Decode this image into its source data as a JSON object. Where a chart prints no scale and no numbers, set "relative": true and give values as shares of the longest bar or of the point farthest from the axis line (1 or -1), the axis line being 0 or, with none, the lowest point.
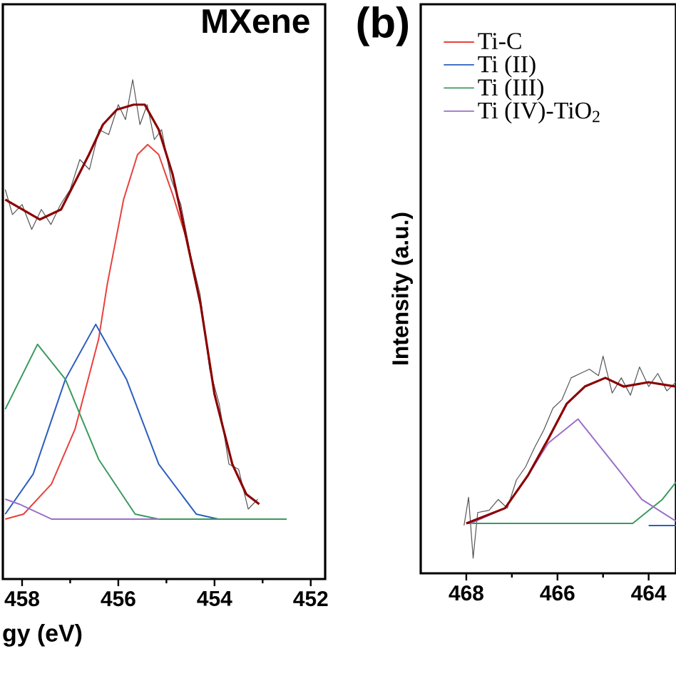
{
  "chart_data": [
    {
      "type": "line",
      "title": "MXene",
      "xlabel": "gy (eV)",
      "relative": true,
      "xlim": [
        458.4,
        451.7
      ],
      "xticks": [
        458,
        456,
        454,
        452
      ],
      "legend": false,
      "series": [
        {
          "color": "#555555",
          "x": [
            458.35,
            458.2,
            458.0,
            457.8,
            457.6,
            457.4,
            457.2,
            457.0,
            456.8,
            456.6,
            456.4,
            456.2,
            456.0,
            455.85,
            455.7,
            455.55,
            455.4,
            455.25,
            455.1,
            454.9,
            454.7,
            454.5,
            454.3,
            454.1,
            453.9,
            453.7,
            453.5,
            453.3,
            453.1
          ],
          "values": [
            0.78,
            0.73,
            0.75,
            0.7,
            0.74,
            0.71,
            0.75,
            0.78,
            0.84,
            0.82,
            0.9,
            0.89,
            0.95,
            0.92,
            1.0,
            0.91,
            0.95,
            0.88,
            0.9,
            0.8,
            0.75,
            0.65,
            0.57,
            0.42,
            0.35,
            0.23,
            0.22,
            0.14,
            0.16
          ]
        },
        {
          "color": "#e8413c",
          "x": [
            458.35,
            457.97,
            457.39,
            456.9,
            456.41,
            456.23,
            455.89,
            455.6,
            455.39,
            455.16,
            454.87,
            454.58
          ],
          "values": [
            0.12,
            0.13,
            0.19,
            0.3,
            0.48,
            0.59,
            0.76,
            0.85,
            0.87,
            0.85,
            0.77,
            0.68
          ]
        },
        {
          "color": "#2c5fbf",
          "x": [
            458.35,
            457.77,
            457.1,
            456.47,
            455.83,
            455.16,
            454.38,
            453.92
          ],
          "values": [
            0.13,
            0.21,
            0.4,
            0.51,
            0.4,
            0.23,
            0.13,
            0.12
          ]
        },
        {
          "color": "#3a9a5e",
          "x": [
            458.35,
            457.68,
            457.1,
            456.41,
            455.65,
            455.16,
            452.5
          ],
          "values": [
            0.34,
            0.47,
            0.4,
            0.24,
            0.13,
            0.12,
            0.12
          ]
        },
        {
          "color": "#9b6fc8",
          "x": [
            458.35,
            458.06,
            457.39,
            456.41,
            455.16
          ],
          "values": [
            0.16,
            0.15,
            0.12,
            0.12,
            0.12
          ]
        },
        {
          "color": "#8b0000",
          "x": [
            458.35,
            457.63,
            457.19,
            456.61,
            456.32,
            456.03,
            455.68,
            455.45,
            455.16,
            454.87,
            454.58,
            454.29,
            454.0,
            453.63,
            453.34,
            453.07
          ],
          "values": [
            0.76,
            0.72,
            0.74,
            0.85,
            0.91,
            0.94,
            0.95,
            0.95,
            0.9,
            0.81,
            0.68,
            0.55,
            0.37,
            0.23,
            0.17,
            0.15
          ]
        }
      ]
    },
    {
      "type": "line",
      "title": "(b)",
      "ylabel": "Intensity (a.u.)",
      "relative": true,
      "xlim": [
        469.0,
        463.4
      ],
      "xticks": [
        468,
        466,
        464
      ],
      "legend": "top left",
      "series": [
        {
          "color": "#555555",
          "x": [
            468.05,
            467.95,
            467.85,
            467.75,
            467.5,
            467.3,
            467.1,
            466.9,
            466.7,
            466.5,
            466.3,
            466.1,
            465.9,
            465.7,
            465.5,
            465.3,
            465.1,
            465.0,
            464.8,
            464.6,
            464.4,
            464.2,
            464.0,
            463.8,
            463.6,
            463.4
          ],
          "values": [
            0.22,
            0.35,
            0.07,
            0.28,
            0.29,
            0.34,
            0.3,
            0.43,
            0.49,
            0.58,
            0.66,
            0.76,
            0.8,
            0.9,
            0.92,
            0.94,
            0.91,
            1.0,
            0.83,
            0.9,
            0.82,
            0.95,
            0.86,
            0.92,
            0.84,
            0.88
          ]
        },
        {
          "name": "Ti-C",
          "color": "#e8413c"
        },
        {
          "name": "Ti (II)",
          "color": "#2c5fbf",
          "x": [
            464.0,
            463.4
          ],
          "values": [
            0.22,
            0.22
          ]
        },
        {
          "name": "Ti (III)",
          "color": "#3a9a5e",
          "x": [
            468.0,
            464.35,
            463.7,
            463.4
          ],
          "values": [
            0.23,
            0.23,
            0.34,
            0.42
          ]
        },
        {
          "name": "Ti (IV)-TiO$_{2}$",
          "color": "#9b6fc8",
          "x": [
            467.9,
            467.15,
            466.65,
            466.2,
            465.55,
            464.75,
            464.15,
            463.4
          ],
          "values": [
            0.23,
            0.3,
            0.45,
            0.6,
            0.71,
            0.5,
            0.34,
            0.24
          ]
        },
        {
          "color": "#8b0000",
          "x": [
            468.0,
            467.15,
            466.65,
            466.2,
            465.8,
            465.4,
            464.95,
            464.55,
            464.0,
            463.4
          ],
          "values": [
            0.23,
            0.3,
            0.45,
            0.62,
            0.78,
            0.86,
            0.9,
            0.86,
            0.88,
            0.86
          ]
        }
      ]
    }
  ]
}
